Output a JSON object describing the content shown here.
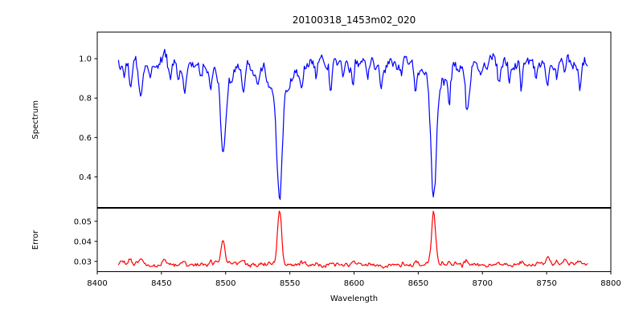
{
  "figure": {
    "background": "#ffffff",
    "spine_color": "#000000",
    "text_color": "#000000"
  },
  "chart_data": [
    {
      "type": "line",
      "name": "spectrum-panel",
      "title": "20100318_1453m02_020",
      "ylabel": "Spectrum",
      "color": "#0000ff",
      "xlim": [
        8400,
        8800
      ],
      "ylim": [
        0.245,
        1.135
      ],
      "yticks": [
        0.4,
        0.6,
        0.8,
        1.0
      ],
      "ytick_labels": [
        "0.4",
        "0.6",
        "0.8",
        "1.0"
      ],
      "x_data_range": [
        8416.5,
        8782
      ],
      "sample_step": 0.75,
      "continuum_level": 0.972,
      "noise_sigma": 0.02,
      "noise_seed": 1234,
      "absorption_lines": [
        [
          8421,
          0.08,
          0.9
        ],
        [
          8426,
          0.11,
          1.0
        ],
        [
          8434,
          0.19,
          1.4
        ],
        [
          8441,
          0.07,
          0.9
        ],
        [
          8452,
          -0.07,
          1.2
        ],
        [
          8457,
          0.06,
          0.8
        ],
        [
          8463,
          0.1,
          1.0
        ],
        [
          8468,
          0.15,
          1.3
        ],
        [
          8480,
          0.07,
          0.8
        ],
        [
          8488,
          0.12,
          1.1
        ],
        [
          8498,
          0.38,
          1.8
        ],
        [
          8498,
          0.09,
          5.0
        ],
        [
          8505,
          0.07,
          0.8
        ],
        [
          8514,
          0.15,
          1.3
        ],
        [
          8525,
          0.08,
          0.9
        ],
        [
          8530,
          -0.04,
          1.0
        ],
        [
          8533,
          0.06,
          0.8
        ],
        [
          8542,
          0.57,
          2.0
        ],
        [
          8542,
          0.13,
          7.0
        ],
        [
          8559,
          0.12,
          1.1
        ],
        [
          8571,
          0.07,
          0.8
        ],
        [
          8582,
          0.13,
          1.2
        ],
        [
          8592,
          0.06,
          0.8
        ],
        [
          8599,
          0.11,
          1.0
        ],
        [
          8605,
          -0.04,
          1.0
        ],
        [
          8611,
          0.07,
          0.8
        ],
        [
          8621,
          0.09,
          0.9
        ],
        [
          8637,
          0.07,
          0.8
        ],
        [
          8640,
          -0.03,
          0.9
        ],
        [
          8648,
          0.11,
          1.0
        ],
        [
          8662,
          0.56,
          2.0
        ],
        [
          8662,
          0.13,
          7.0
        ],
        [
          8674,
          0.15,
          1.2
        ],
        [
          8688,
          0.25,
          1.5
        ],
        [
          8699,
          0.07,
          0.8
        ],
        [
          8713,
          0.11,
          1.0
        ],
        [
          8721,
          0.07,
          0.8
        ],
        [
          8730,
          0.1,
          1.0
        ],
        [
          8742,
          0.08,
          0.9
        ],
        [
          8751,
          0.12,
          1.1
        ],
        [
          8758,
          0.07,
          0.8
        ],
        [
          8764,
          0.09,
          0.9
        ],
        [
          8766,
          -0.04,
          0.9
        ],
        [
          8776,
          0.09,
          0.9
        ]
      ]
    },
    {
      "type": "line",
      "name": "error-panel",
      "ylabel": "Error",
      "xlabel": "Wavelength",
      "color": "#ff0000",
      "xlim": [
        8400,
        8800
      ],
      "ylim": [
        0.0249,
        0.0565
      ],
      "yticks": [
        0.03,
        0.04,
        0.05
      ],
      "ytick_labels": [
        "0.03",
        "0.04",
        "0.05"
      ],
      "xticks": [
        8400,
        8450,
        8500,
        8550,
        8600,
        8650,
        8700,
        8750,
        8800
      ],
      "xtick_labels": [
        "8400",
        "8450",
        "8500",
        "8550",
        "8600",
        "8650",
        "8700",
        "8750",
        "8800"
      ],
      "x_data_range": [
        8416.5,
        8782
      ],
      "sample_step": 0.75,
      "baseline_level": 0.0285,
      "noise_sigma": 0.0006,
      "noise_seed": 777,
      "peaks": [
        [
          8420,
          0.0012,
          4.0
        ],
        [
          8426,
          0.0015,
          1.0
        ],
        [
          8434,
          0.0028,
          1.4
        ],
        [
          8452,
          0.0022,
          1.2
        ],
        [
          8468,
          0.0015,
          1.2
        ],
        [
          8488,
          0.0012,
          1.0
        ],
        [
          8498,
          0.0118,
          1.4
        ],
        [
          8514,
          0.0018,
          1.2
        ],
        [
          8542,
          0.027,
          1.6
        ],
        [
          8559,
          0.0012,
          1.0
        ],
        [
          8582,
          0.0014,
          1.1
        ],
        [
          8599,
          0.001,
          1.0
        ],
        [
          8648,
          0.0012,
          1.0
        ],
        [
          8662,
          0.0265,
          1.6
        ],
        [
          8674,
          0.0015,
          1.1
        ],
        [
          8688,
          0.0018,
          1.2
        ],
        [
          8713,
          0.0012,
          1.0
        ],
        [
          8730,
          0.0012,
          1.0
        ],
        [
          8751,
          0.003,
          1.3
        ],
        [
          8758,
          0.0022,
          1.1
        ],
        [
          8764,
          0.0028,
          1.2
        ],
        [
          8776,
          0.0015,
          1.0
        ]
      ]
    }
  ]
}
